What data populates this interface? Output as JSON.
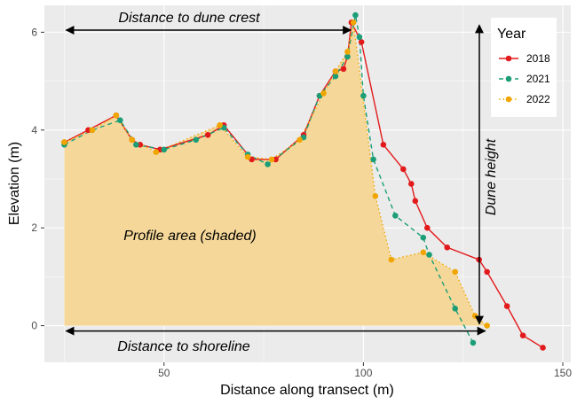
{
  "chart_data": {
    "type": "line",
    "xlabel": "Distance along transect (m)",
    "ylabel": "Elevation (m)",
    "xlim": [
      20,
      152
    ],
    "ylim": [
      -0.75,
      6.55
    ],
    "x_ticks": [
      50,
      100,
      150
    ],
    "y_ticks": [
      0,
      2,
      4,
      6
    ],
    "grid": true,
    "legend": {
      "title": "Year",
      "position": "top-right"
    },
    "annotations": {
      "crest": "Distance to dune crest",
      "shoreline": "Distance to shoreline",
      "height": "Dune height",
      "area": "Profile area (shaded)"
    },
    "crest_x": 97.5,
    "crest_y": 6.2,
    "shoreline_x": 131,
    "profile_start_x": 25,
    "area_color": "#f5d899",
    "series": [
      {
        "name": "2018",
        "color": "#e31a1c",
        "dash": "solid",
        "x": [
          25,
          31,
          38,
          42,
          44,
          49,
          61,
          65,
          72,
          78,
          85,
          89,
          93,
          95,
          96,
          97,
          99.5,
          105,
          110,
          112,
          113,
          116,
          121,
          129,
          131,
          136,
          140,
          145
        ],
        "y": [
          3.75,
          4.0,
          4.3,
          3.8,
          3.7,
          3.6,
          3.9,
          4.1,
          3.4,
          3.4,
          3.9,
          4.7,
          5.2,
          5.25,
          5.5,
          6.2,
          5.8,
          3.7,
          3.2,
          2.9,
          2.55,
          2.0,
          1.6,
          1.35,
          1.1,
          0.4,
          -0.2,
          -0.45
        ]
      },
      {
        "name": "2021",
        "color": "#1b9e77",
        "dash": "dashed",
        "x": [
          25,
          32,
          39,
          43,
          50,
          58,
          65,
          71,
          76,
          85,
          89,
          93,
          96,
          98,
          99,
          100,
          102.5,
          108,
          115,
          116.5,
          123,
          127.5
        ],
        "y": [
          3.7,
          4.0,
          4.2,
          3.7,
          3.6,
          3.8,
          4.05,
          3.5,
          3.3,
          3.85,
          4.7,
          5.1,
          5.5,
          6.35,
          5.9,
          4.7,
          3.4,
          2.25,
          1.8,
          1.45,
          0.35,
          -0.35
        ]
      },
      {
        "name": "2022",
        "color": "#f0a500",
        "dash": "dotted",
        "x": [
          25,
          32,
          38,
          42,
          48,
          64,
          71,
          77,
          84,
          90,
          93,
          96,
          97.5,
          103,
          107,
          115,
          123,
          128,
          131
        ],
        "y": [
          3.75,
          4.0,
          4.3,
          3.8,
          3.55,
          4.1,
          3.45,
          3.4,
          3.8,
          4.75,
          5.2,
          5.6,
          6.2,
          2.65,
          1.35,
          1.5,
          1.1,
          0.2,
          0.0
        ]
      }
    ]
  }
}
